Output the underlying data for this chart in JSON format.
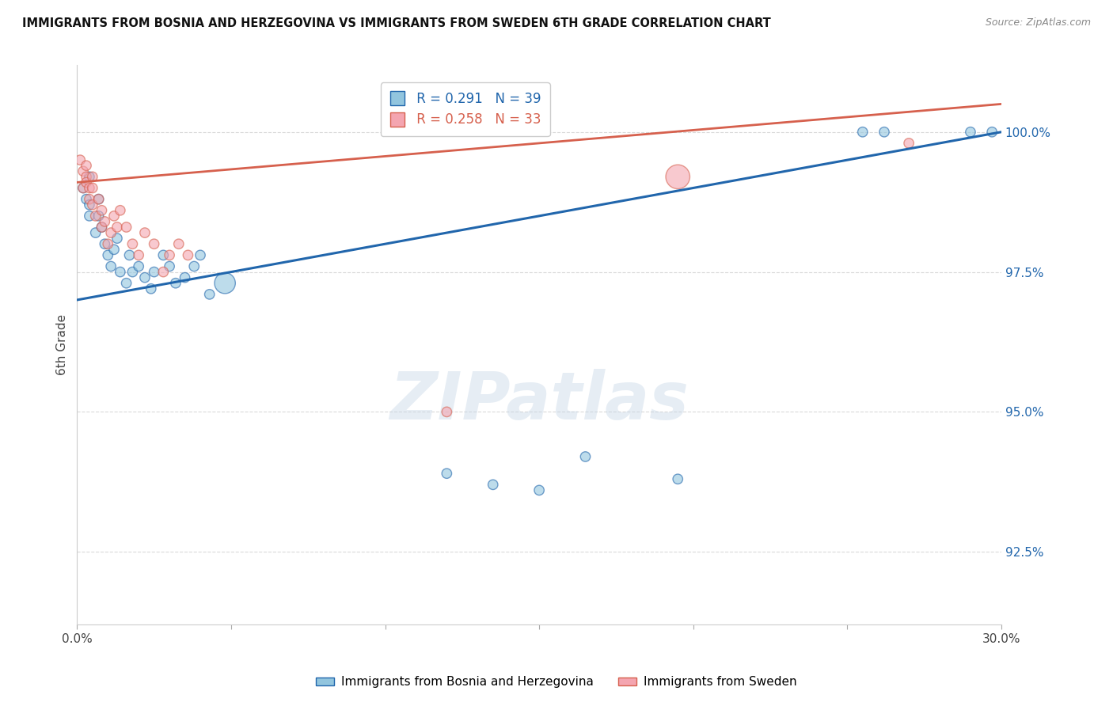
{
  "title": "IMMIGRANTS FROM BOSNIA AND HERZEGOVINA VS IMMIGRANTS FROM SWEDEN 6TH GRADE CORRELATION CHART",
  "source": "Source: ZipAtlas.com",
  "ylabel": "6th Grade",
  "y_ticks": [
    92.5,
    95.0,
    97.5,
    100.0
  ],
  "y_tick_labels": [
    "92.5%",
    "95.0%",
    "97.5%",
    "100.0%"
  ],
  "xlim": [
    0.0,
    0.3
  ],
  "ylim": [
    91.2,
    101.2
  ],
  "blue_R": 0.291,
  "blue_N": 39,
  "pink_R": 0.258,
  "pink_N": 33,
  "legend_label_blue": "Immigrants from Bosnia and Herzegovina",
  "legend_label_pink": "Immigrants from Sweden",
  "blue_color": "#92c5de",
  "pink_color": "#f4a5b0",
  "line_blue_color": "#2166ac",
  "line_pink_color": "#d6604d",
  "blue_scatter_x": [
    0.002,
    0.003,
    0.004,
    0.004,
    0.004,
    0.006,
    0.007,
    0.007,
    0.008,
    0.009,
    0.01,
    0.011,
    0.012,
    0.013,
    0.014,
    0.016,
    0.017,
    0.018,
    0.02,
    0.022,
    0.024,
    0.025,
    0.028,
    0.03,
    0.032,
    0.035,
    0.038,
    0.04,
    0.043,
    0.048,
    0.12,
    0.135,
    0.15,
    0.165,
    0.195,
    0.255,
    0.262,
    0.29,
    0.297
  ],
  "blue_scatter_y": [
    99.0,
    98.8,
    98.5,
    98.7,
    99.2,
    98.2,
    98.5,
    98.8,
    98.3,
    98.0,
    97.8,
    97.6,
    97.9,
    98.1,
    97.5,
    97.3,
    97.8,
    97.5,
    97.6,
    97.4,
    97.2,
    97.5,
    97.8,
    97.6,
    97.3,
    97.4,
    97.6,
    97.8,
    97.1,
    97.3,
    93.9,
    93.7,
    93.6,
    94.2,
    93.8,
    100.0,
    100.0,
    100.0,
    100.0
  ],
  "blue_scatter_size": [
    80,
    80,
    80,
    80,
    80,
    80,
    80,
    80,
    80,
    80,
    80,
    80,
    80,
    80,
    80,
    80,
    80,
    80,
    80,
    80,
    80,
    80,
    80,
    80,
    80,
    80,
    80,
    80,
    80,
    360,
    80,
    80,
    80,
    80,
    80,
    80,
    80,
    80,
    80
  ],
  "pink_scatter_x": [
    0.001,
    0.002,
    0.002,
    0.003,
    0.003,
    0.003,
    0.004,
    0.004,
    0.005,
    0.005,
    0.005,
    0.006,
    0.007,
    0.008,
    0.008,
    0.009,
    0.01,
    0.011,
    0.012,
    0.013,
    0.014,
    0.016,
    0.018,
    0.02,
    0.022,
    0.025,
    0.028,
    0.03,
    0.033,
    0.036,
    0.12,
    0.195,
    0.27
  ],
  "pink_scatter_y": [
    99.5,
    99.3,
    99.0,
    99.2,
    99.4,
    99.1,
    99.0,
    98.8,
    99.0,
    98.7,
    99.2,
    98.5,
    98.8,
    98.3,
    98.6,
    98.4,
    98.0,
    98.2,
    98.5,
    98.3,
    98.6,
    98.3,
    98.0,
    97.8,
    98.2,
    98.0,
    97.5,
    97.8,
    98.0,
    97.8,
    95.0,
    99.2,
    99.8
  ],
  "pink_scatter_size": [
    80,
    80,
    80,
    80,
    80,
    80,
    80,
    80,
    80,
    80,
    80,
    80,
    80,
    80,
    80,
    80,
    80,
    80,
    80,
    80,
    80,
    80,
    80,
    80,
    80,
    80,
    80,
    80,
    80,
    80,
    80,
    480,
    80
  ],
  "blue_line_x0": 0.0,
  "blue_line_y0": 97.0,
  "blue_line_x1": 0.3,
  "blue_line_y1": 100.0,
  "pink_line_x0": 0.0,
  "pink_line_y0": 99.1,
  "pink_line_x1": 0.3,
  "pink_line_y1": 100.5,
  "watermark_text": "ZIPatlas",
  "background_color": "#ffffff",
  "grid_color": "#d9d9d9"
}
